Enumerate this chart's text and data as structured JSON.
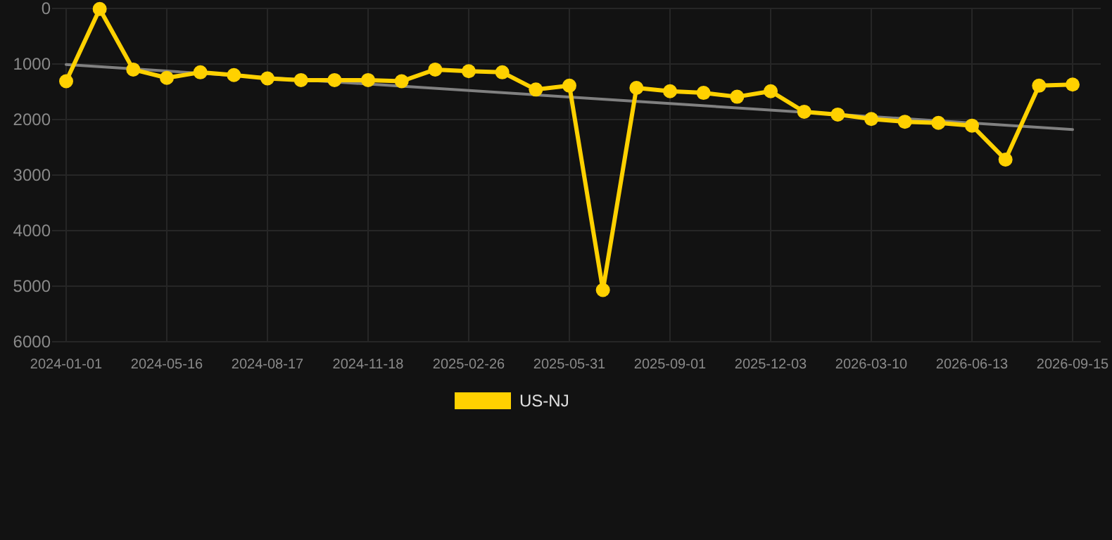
{
  "chart_data": {
    "type": "line",
    "categories": [
      "2024-01-01",
      null,
      null,
      "2024-05-16",
      null,
      null,
      "2024-08-17",
      null,
      null,
      "2024-11-18",
      null,
      null,
      "2025-02-26",
      null,
      null,
      "2025-05-31",
      null,
      null,
      "2025-09-01",
      null,
      null,
      "2025-12-03",
      null,
      null,
      "2026-03-10",
      null,
      null,
      "2026-06-13",
      null,
      null,
      "2026-09-15"
    ],
    "series": [
      {
        "name": "US-NJ",
        "color": "#ffd100",
        "marker": "circle",
        "values": [
          1310,
          10,
          1100,
          1250,
          1150,
          1200,
          1260,
          1290,
          1290,
          1290,
          1310,
          1100,
          1130,
          1150,
          1460,
          1390,
          5070,
          1430,
          1490,
          1520,
          1590,
          1490,
          1860,
          1910,
          1990,
          2040,
          2060,
          2110,
          2720,
          1390,
          1370
        ]
      },
      {
        "type": "line",
        "color": "#808080",
        "marker": "none",
        "values": [
          1010,
          null,
          null,
          null,
          null,
          null,
          null,
          null,
          null,
          null,
          null,
          null,
          null,
          null,
          null,
          null,
          null,
          null,
          null,
          null,
          null,
          null,
          null,
          null,
          null,
          null,
          null,
          null,
          null,
          null,
          2180
        ]
      }
    ],
    "ylim": [
      6000,
      0
    ],
    "yticks": [
      0,
      1000,
      2000,
      3000,
      4000,
      5000,
      6000
    ],
    "grid": true,
    "legend": "bottom",
    "line_style": "solid"
  }
}
